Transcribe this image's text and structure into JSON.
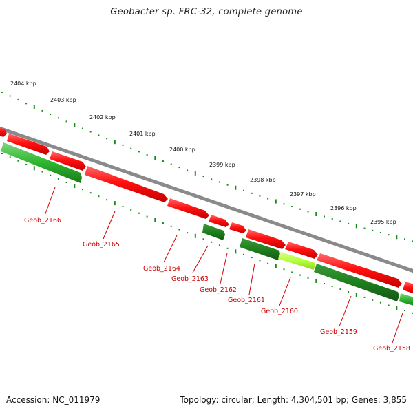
{
  "title": "Geobacter sp. FRC-32, complete genome",
  "footer": {
    "accession": "Accession: NC_011979",
    "summary": "Topology: circular; Length: 4,304,501 bp; Genes: 3,855"
  },
  "colors": {
    "forward_gene": "#ff1010",
    "reverse_gene": "#2fb52f",
    "reverse_gene_dark": "#1f7f1f",
    "highlight_gene": "#b6ff3c",
    "backbone": "#8a8a8a",
    "tick": "#1a8a1a",
    "label": "#cc0000"
  },
  "kbp_ticks": [
    "2404 kbp",
    "2403 kbp",
    "2402 kbp",
    "2401 kbp",
    "2400 kbp",
    "2399 kbp",
    "2398 kbp",
    "2397 kbp",
    "2396 kbp",
    "2395 kbp"
  ],
  "gene_labels": [
    "Geob_2166",
    "Geob_2165",
    "Geob_2164",
    "Geob_2163",
    "Geob_2162",
    "Geob_2161",
    "Geob_2160",
    "Geob_2159",
    "Geob_2158"
  ]
}
